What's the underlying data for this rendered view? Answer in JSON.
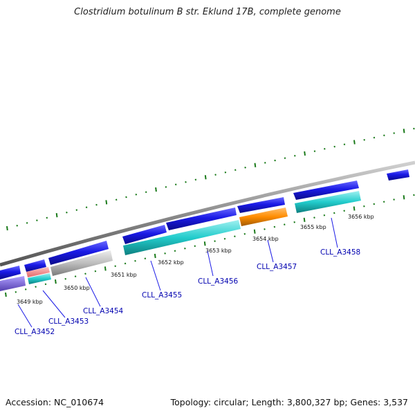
{
  "title": "Clostridium botulinum B str. Eklund 17B, complete genome",
  "footer": {
    "accession": "Accession: NC_010674",
    "summary": "Topology: circular; Length: 3,800,327 bp; Genes: 3,537"
  },
  "scale_labels": [
    "3649 kbp",
    "3650 kbp",
    "3651 kbp",
    "3652 kbp",
    "3653 kbp",
    "3654 kbp",
    "3655 kbp",
    "3656 kbp"
  ],
  "gene_labels": [
    "CLL_A3452",
    "CLL_A3453",
    "CLL_A3454",
    "CLL_A3455",
    "CLL_A3456",
    "CLL_A3457",
    "CLL_A3458"
  ],
  "colors": {
    "backbone": "#8c8c8c",
    "tick": "#1a7a1a",
    "gene_blue": "#1a1ae6",
    "cds_cyan": "#22cccc",
    "cds_gray": "#bdbdbd",
    "cds_orange": "#ff8c00",
    "cds_salmon": "#f08080",
    "cds_purple": "#7a62d0",
    "label_blue": "#0000b0"
  }
}
